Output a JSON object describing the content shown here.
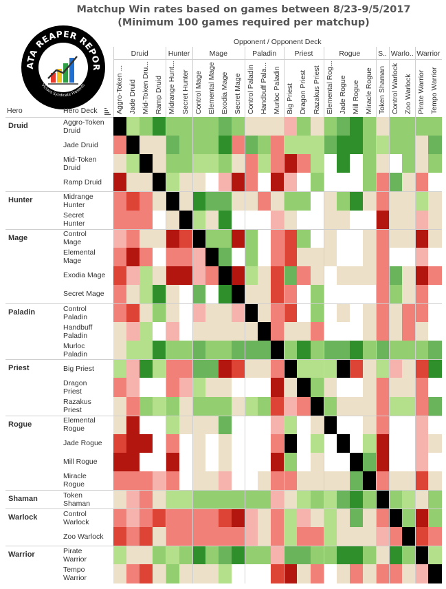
{
  "title_line1": "Matchup Win rates based on games between 8/23-9/5/2017",
  "title_line2": "(Minimum 100 games required per matchup)",
  "logo": {
    "text_top": "DATA REAPER REPORT",
    "text_bottom": "Vicious Syndicate Presents"
  },
  "opponent_header": "Opponent  /  Opponent Deck",
  "hero_header": "Hero",
  "deck_header": "Hero Deck",
  "heroes": [
    {
      "name": "Druid",
      "short": "Druid",
      "decks": [
        "Aggro-Token Druid",
        "Jade Druid",
        "Mid-Token Druid",
        "Ramp Druid"
      ],
      "col_labels": [
        "Aggro-Token ...",
        "Jade Druid",
        "Mid-Token Dru...",
        "Ramp Druid"
      ]
    },
    {
      "name": "Hunter",
      "short": "Hunter",
      "decks": [
        "Midrange Hunter",
        "Secret Hunter"
      ],
      "col_labels": [
        "Midrange Hunt...",
        "Secret Hunter"
      ]
    },
    {
      "name": "Mage",
      "short": "Mage",
      "decks": [
        "Control Mage",
        "Elemental Mage",
        "Exodia Mage",
        "Secret Mage"
      ],
      "col_labels": [
        "Control Mage",
        "Elemental Mage",
        "Exodia Mage",
        "Secret Mage"
      ]
    },
    {
      "name": "Paladin",
      "short": "Paladin",
      "decks": [
        "Control Paladin",
        "Handbuff Paladin",
        "Murloc Paladin"
      ],
      "col_labels": [
        "Control Paladin",
        "Handbuff Pala...",
        "Murloc Paladin"
      ]
    },
    {
      "name": "Priest",
      "short": "Priest",
      "decks": [
        "Big Priest",
        "Dragon Priest",
        "Razakus Priest"
      ],
      "col_labels": [
        "Big Priest",
        "Dragon Priest",
        "Razakus Priest"
      ]
    },
    {
      "name": "Rogue",
      "short": "Rogue",
      "decks": [
        "Elemental Rogue",
        "Jade Rogue",
        "Mill Rogue",
        "Miracle Rogue"
      ],
      "col_labels": [
        "Elemental Rog...",
        "Jade Rogue",
        "Mill Rogue",
        "Miracle Rogue"
      ]
    },
    {
      "name": "Shaman",
      "short": "S..",
      "decks": [
        "Token Shaman"
      ],
      "col_labels": [
        "Token Shaman"
      ]
    },
    {
      "name": "Warlock",
      "short": "Warlo..",
      "decks": [
        "Control Warlock",
        "Zoo Warlock"
      ],
      "col_labels": [
        "Control Warlock",
        "Zoo Warlock"
      ]
    },
    {
      "name": "Warrior",
      "short": "Warrior",
      "decks": [
        "Pirate Warrior",
        "Tempo Warrior"
      ],
      "col_labels": [
        "Pirate Warrior",
        "Tempo Warrior"
      ]
    }
  ],
  "colors": {
    "W": "#ffffff",
    "B": "#000000",
    "N": "#ede0c8",
    "g1": "#b4e08c",
    "g2": "#93cf70",
    "g3": "#6ab45c",
    "g4": "#2f8f2a",
    "r1": "#f6b3ad",
    "r2": "#f08078",
    "r3": "#dd4436",
    "r4": "#b2160e"
  },
  "chart_data": {
    "type": "heatmap",
    "title": "Matchup Win rates based on games between 8/23-9/5/2017",
    "subtitle": "(Minimum 100 games required per matchup)",
    "xlabel": "Opponent  /  Opponent Deck",
    "ylabel": "Hero / Hero Deck",
    "legend": "none",
    "color_scale": "W = no data, B = mirror, N = ~50%, g1..g4 = favored (light to dark green), r1..r4 = unfavored (light to dark red)",
    "rows": [
      "Aggro-Token Druid",
      "Jade Druid",
      "Mid-Token Druid",
      "Ramp Druid",
      "Midrange Hunter",
      "Secret Hunter",
      "Control Mage",
      "Elemental Mage",
      "Exodia Mage",
      "Secret Mage",
      "Control Paladin",
      "Handbuff Paladin",
      "Murloc Paladin",
      "Big Priest",
      "Dragon Priest",
      "Razakus Priest",
      "Elemental Rogue",
      "Jade Rogue",
      "Mill Rogue",
      "Miracle Rogue",
      "Token Shaman",
      "Control Warlock",
      "Zoo Warlock",
      "Pirate Warrior",
      "Tempo Warrior"
    ],
    "cols": [
      "Aggro-Token Druid",
      "Jade Druid",
      "Mid-Token Druid",
      "Ramp Druid",
      "Midrange Hunter",
      "Secret Hunter",
      "Control Mage",
      "Elemental Mage",
      "Exodia Mage",
      "Secret Mage",
      "Control Paladin",
      "Handbuff Paladin",
      "Murloc Paladin",
      "Big Priest",
      "Dragon Priest",
      "Razakus Priest",
      "Elemental Rogue",
      "Jade Rogue",
      "Mill Rogue",
      "Miracle Rogue",
      "Token Shaman",
      "Control Warlock",
      "Zoo Warlock",
      "Pirate Warrior",
      "Tempo Warrior"
    ],
    "cells": [
      [
        "B",
        "g1",
        "g2",
        "g4",
        "g2",
        "g2",
        "g2",
        "g2",
        "g3",
        "g2",
        "N",
        "N",
        "N",
        "r1",
        "g2",
        "N",
        "g2",
        "g3",
        "g4",
        "g2",
        "N",
        "g2",
        "g2",
        "g2",
        "g2"
      ],
      [
        "r2",
        "B",
        "N",
        "N",
        "g3",
        "g2",
        "g2",
        "g2",
        "g4",
        "r2",
        "g3",
        "g2",
        "r2",
        "g1",
        "g1",
        "g1",
        "g3",
        "g4",
        "g4",
        "g2",
        "g1",
        "g2",
        "g2",
        "N",
        "g3"
      ],
      [
        "N",
        "g1",
        "B",
        "N",
        "g2",
        "g2",
        "g1",
        "g1",
        "g2",
        "N",
        "r2",
        "g1",
        "r2",
        "r4",
        "r2",
        "g1",
        "W",
        "g4",
        "W",
        "g2",
        "N",
        "W",
        "g2",
        "N",
        "g2"
      ],
      [
        "r4",
        "N",
        "N",
        "B",
        "g1",
        "N",
        "N",
        "W",
        "r1",
        "r4",
        "r2",
        "W",
        "r4",
        "r1",
        "W",
        "g2",
        "W",
        "W",
        "W",
        "g2",
        "r2",
        "g3",
        "N",
        "r2",
        "W"
      ],
      [
        "r2",
        "r3",
        "r2",
        "N",
        "B",
        "N",
        "g4",
        "g3",
        "g3",
        "N",
        "N",
        "r2",
        "N",
        "g2",
        "g2",
        "W",
        "N",
        "g2",
        "g4",
        "N",
        "r2",
        "N",
        "N",
        "g1",
        "N"
      ],
      [
        "r2",
        "r2",
        "r2",
        "W",
        "N",
        "B",
        "g1",
        "N",
        "g4",
        "W",
        "W",
        "W",
        "r1",
        "N",
        "W",
        "W",
        "N",
        "N",
        "W",
        "W",
        "r4",
        "N",
        "N",
        "r1",
        "N"
      ],
      [
        "r1",
        "r2",
        "N",
        "N",
        "r4",
        "r3",
        "B",
        "g2",
        "g2",
        "r4",
        "g2",
        "W",
        "r2",
        "r3",
        "g2",
        "W",
        "N",
        "W",
        "W",
        "N",
        "r2",
        "N",
        "N",
        "r4",
        "N"
      ],
      [
        "r2",
        "r4",
        "r2",
        "W",
        "r2",
        "r2",
        "r1",
        "B",
        "g3",
        "W",
        "g2",
        "W",
        "r2",
        "r3",
        "N",
        "N",
        "N",
        "W",
        "W",
        "N",
        "r2",
        "W",
        "W",
        "r1",
        "W"
      ],
      [
        "r3",
        "r1",
        "g1",
        "N",
        "r4",
        "r4",
        "r1",
        "r2",
        "B",
        "r4",
        "g1",
        "N",
        "r3",
        "g3",
        "r2",
        "N",
        "W",
        "N",
        "N",
        "N",
        "r2",
        "g3",
        "N",
        "r4",
        "r2"
      ],
      [
        "r2",
        "N",
        "g1",
        "g4",
        "N",
        "W",
        "g3",
        "W",
        "g4",
        "B",
        "N",
        "N",
        "r3",
        "r2",
        "W",
        "g2",
        "W",
        "W",
        "W",
        "W",
        "r2",
        "g2",
        "N",
        "r2",
        "W"
      ],
      [
        "r2",
        "r3",
        "N",
        "g2",
        "N",
        "W",
        "r1",
        "N",
        "N",
        "r1",
        "B",
        "N",
        "r2",
        "r3",
        "W",
        "g2",
        "W",
        "N",
        "W",
        "N",
        "r2",
        "N",
        "r2",
        "r2",
        "W"
      ],
      [
        "N",
        "r1",
        "g1",
        "W",
        "r1",
        "W",
        "N",
        "N",
        "N",
        "N",
        "N",
        "B",
        "r2",
        "N",
        "N",
        "r2",
        "W",
        "W",
        "W",
        "N",
        "r2",
        "N",
        "r2",
        "N",
        "W"
      ],
      [
        "N",
        "g1",
        "g1",
        "g4",
        "g2",
        "g2",
        "g3",
        "g2",
        "g2",
        "g3",
        "g3",
        "g3",
        "B",
        "g2",
        "g4",
        "g2",
        "g3",
        "g3",
        "g4",
        "g2",
        "g3",
        "g2",
        "g2",
        "g2",
        "g3"
      ],
      [
        "g1",
        "r1",
        "g4",
        "g1",
        "r2",
        "r2",
        "g3",
        "g3",
        "r4",
        "r3",
        "N",
        "N",
        "r2",
        "B",
        "g1",
        "g1",
        "g1",
        "B",
        "r3",
        "N",
        "g1",
        "r1",
        "N",
        "r3",
        "g4"
      ],
      [
        "r2",
        "r1",
        "W",
        "W",
        "r2",
        "r1",
        "g1",
        "N",
        "N",
        "W",
        "W",
        "W",
        "r4",
        "N",
        "B",
        "g2",
        "N",
        "W",
        "W",
        "N",
        "r2",
        "N",
        "N",
        "r2",
        "W"
      ],
      [
        "N",
        "r2",
        "g2",
        "g1",
        "g2",
        "N",
        "g2",
        "g2",
        "g2",
        "N",
        "g1",
        "g2",
        "r3",
        "r1",
        "r2",
        "B",
        "g2",
        "N",
        "N",
        "N",
        "r2",
        "g1",
        "g1",
        "r2",
        "g3"
      ],
      [
        "N",
        "r4",
        "W",
        "W",
        "g1",
        "N",
        "N",
        "N",
        "g3",
        "W",
        "W",
        "W",
        "r1",
        "g1",
        "W",
        "N",
        "B",
        "W",
        "W",
        "N",
        "r2",
        "W",
        "W",
        "r1",
        "W"
      ],
      [
        "r3",
        "r4",
        "r4",
        "W",
        "r2",
        "W",
        "N",
        "W",
        "N",
        "W",
        "W",
        "W",
        "r2",
        "B",
        "W",
        "g1",
        "W",
        "B",
        "W",
        "g1",
        "r4",
        "W",
        "W",
        "r1",
        "N"
      ],
      [
        "r4",
        "r4",
        "W",
        "W",
        "r4",
        "W",
        "N",
        "W",
        "N",
        "W",
        "W",
        "W",
        "r4",
        "g2",
        "W",
        "N",
        "W",
        "W",
        "B",
        "g3",
        "r4",
        "W",
        "W",
        "r1",
        "W"
      ],
      [
        "r2",
        "r2",
        "r2",
        "r1",
        "r2",
        "W",
        "N",
        "N",
        "r1",
        "W",
        "W",
        "N",
        "r2",
        "r2",
        "N",
        "N",
        "N",
        "N",
        "g3",
        "B",
        "r2",
        "N",
        "N",
        "r3",
        "N"
      ],
      [
        "N",
        "r1",
        "r2",
        "N",
        "g1",
        "g1",
        "g2",
        "g2",
        "g2",
        "g2",
        "g2",
        "g2",
        "r1",
        "N",
        "g1",
        "g2",
        "g1",
        "g3",
        "g4",
        "g2",
        "B",
        "g2",
        "g1",
        "N",
        "g2"
      ],
      [
        "r2",
        "r1",
        "r2",
        "r3",
        "r2",
        "r2",
        "r2",
        "r2",
        "r3",
        "r4",
        "r1",
        "N",
        "r2",
        "g1",
        "r1",
        "N",
        "g1",
        "N",
        "g3",
        "N",
        "r2",
        "B",
        "g2",
        "r4",
        "g2"
      ],
      [
        "r3",
        "r2",
        "r3",
        "N",
        "r2",
        "r2",
        "r2",
        "r2",
        "r2",
        "r2",
        "r1",
        "N",
        "r2",
        "g1",
        "r2",
        "r2",
        "g1",
        "N",
        "N",
        "N",
        "r1",
        "r2",
        "B",
        "r3",
        "r2"
      ],
      [
        "g1",
        "N",
        "N",
        "g2",
        "g1",
        "g2",
        "g4",
        "g2",
        "g3",
        "g4",
        "g2",
        "g2",
        "r1",
        "g3",
        "g3",
        "g2",
        "g2",
        "g4",
        "g4",
        "g2",
        "N",
        "g4",
        "g2",
        "B",
        "g1"
      ],
      [
        "N",
        "r2",
        "r3",
        "N",
        "g2",
        "N",
        "N",
        "N",
        "g1",
        "W",
        "W",
        "W",
        "r3",
        "r4",
        "N",
        "r2",
        "W",
        "N",
        "r2",
        "N",
        "r2",
        "r2",
        "N",
        "r1",
        "B"
      ]
    ]
  }
}
